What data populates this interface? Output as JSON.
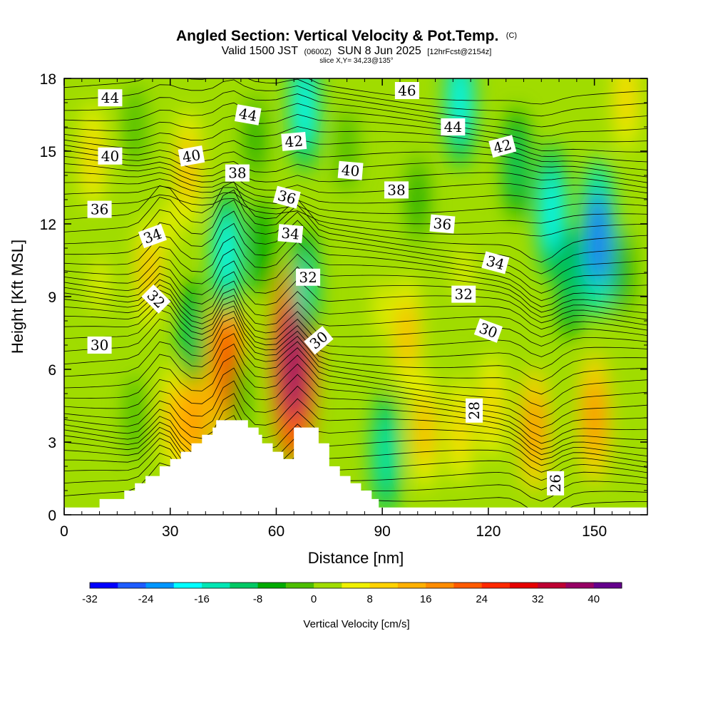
{
  "chart_data": {
    "type": "heatmap",
    "title_main": "Angled Section: Vertical Velocity & Pot.Temp.",
    "title_copyright": "(C)",
    "subtitle_a": "Valid 1500 JST",
    "subtitle_b": "(0600Z)",
    "subtitle_c": "SUN 8 Jun 2025",
    "subtitle_d": "[12hrFcst@2154z]",
    "slice_text": "slice X,Y= 34,23@135°",
    "xlabel": "Distance [nm]",
    "ylabel": "Height [Kft MSL]",
    "xlim": [
      0,
      165
    ],
    "ylim": [
      0,
      18
    ],
    "x_ticks": [
      0,
      30,
      60,
      90,
      120,
      150
    ],
    "y_ticks": [
      0,
      3,
      6,
      9,
      12,
      15,
      18
    ],
    "colorbar": {
      "title": "Vertical Velocity [cm/s]",
      "levels": [
        -32,
        -28,
        -24,
        -20,
        -16,
        -12,
        -8,
        -4,
        0,
        4,
        8,
        12,
        16,
        20,
        24,
        28,
        32,
        36,
        40,
        44
      ],
      "tick_labels": [
        "-32",
        "-24",
        "-16",
        "-8",
        "0",
        "8",
        "16",
        "24",
        "32",
        "40"
      ],
      "colors": [
        "#0000ff",
        "#1e5cff",
        "#0096ff",
        "#00ffff",
        "#00e6b4",
        "#00c864",
        "#00aa00",
        "#4cbe00",
        "#a0dc00",
        "#f0f000",
        "#ffd200",
        "#ffb000",
        "#ff8c00",
        "#ff5a00",
        "#ff2800",
        "#e60000",
        "#be0032",
        "#960064",
        "#64008c"
      ]
    },
    "terrain": [
      [
        0,
        0.3
      ],
      [
        10,
        0.3
      ],
      [
        10,
        0.65
      ],
      [
        17,
        0.65
      ],
      [
        17,
        1.0
      ],
      [
        20,
        1.0
      ],
      [
        20,
        1.3
      ],
      [
        23,
        1.3
      ],
      [
        23,
        1.6
      ],
      [
        27,
        1.6
      ],
      [
        27,
        2.0
      ],
      [
        30,
        2.0
      ],
      [
        30,
        2.3
      ],
      [
        33,
        2.3
      ],
      [
        33,
        2.6
      ],
      [
        36,
        2.6
      ],
      [
        36,
        2.95
      ],
      [
        39,
        2.95
      ],
      [
        39,
        3.3
      ],
      [
        42,
        3.3
      ],
      [
        42,
        3.6
      ],
      [
        43,
        3.6
      ],
      [
        43,
        3.9
      ],
      [
        52,
        3.9
      ],
      [
        52,
        3.6
      ],
      [
        55,
        3.6
      ],
      [
        55,
        3.3
      ],
      [
        56,
        3.3
      ],
      [
        56,
        2.95
      ],
      [
        59,
        2.95
      ],
      [
        59,
        2.6
      ],
      [
        62,
        2.6
      ],
      [
        62,
        2.3
      ],
      [
        65,
        2.3
      ],
      [
        65,
        3.6
      ],
      [
        72,
        3.6
      ],
      [
        72,
        2.95
      ],
      [
        75,
        2.95
      ],
      [
        75,
        2.0
      ],
      [
        78,
        2.0
      ],
      [
        78,
        1.6
      ],
      [
        81,
        1.6
      ],
      [
        81,
        1.3
      ],
      [
        84,
        1.3
      ],
      [
        84,
        1.0
      ],
      [
        87,
        1.0
      ],
      [
        87,
        0.65
      ],
      [
        89,
        0.65
      ],
      [
        89,
        0.3
      ],
      [
        165,
        0.3
      ]
    ],
    "velocity_cells": [
      {
        "x": 8,
        "y": 14.8,
        "value": 10
      },
      {
        "x": 10,
        "y": 9.5,
        "value": 6
      },
      {
        "x": 24,
        "y": 10.0,
        "value": 12
      },
      {
        "x": 35,
        "y": 14.3,
        "value": 14
      },
      {
        "x": 30,
        "y": 12.0,
        "value": 6
      },
      {
        "x": 31,
        "y": 4.0,
        "value": 12
      },
      {
        "x": 37,
        "y": 3.8,
        "value": 18
      },
      {
        "x": 46,
        "y": 6.2,
        "value": 26
      },
      {
        "x": 65,
        "y": 6.3,
        "value": 38
      },
      {
        "x": 90,
        "y": 8.5,
        "value": 6
      },
      {
        "x": 97,
        "y": 7.4,
        "value": 14
      },
      {
        "x": 102,
        "y": 3.5,
        "value": 14
      },
      {
        "x": 112,
        "y": 3.5,
        "value": 10
      },
      {
        "x": 121,
        "y": 4.5,
        "value": 10
      },
      {
        "x": 133,
        "y": 3.5,
        "value": 16
      },
      {
        "x": 150,
        "y": 4.0,
        "value": 18
      },
      {
        "x": 159,
        "y": 17.2,
        "value": 10
      },
      {
        "x": 113,
        "y": 10.0,
        "value": 4
      },
      {
        "x": 46,
        "y": 10.8,
        "value": -18
      },
      {
        "x": 49,
        "y": 5.0,
        "value": -6
      },
      {
        "x": 36,
        "y": 7.5,
        "value": -12
      },
      {
        "x": 68,
        "y": 9.5,
        "value": -14
      },
      {
        "x": 68,
        "y": 16.8,
        "value": -18
      },
      {
        "x": 91,
        "y": 2.5,
        "value": -16
      },
      {
        "x": 112,
        "y": 17.0,
        "value": -18
      },
      {
        "x": 138,
        "y": 12.5,
        "value": -20
      },
      {
        "x": 151,
        "y": 11.4,
        "value": -26
      },
      {
        "x": 143,
        "y": 9.5,
        "value": -12
      },
      {
        "x": 158,
        "y": 10.0,
        "value": -6
      },
      {
        "x": 128,
        "y": 14.5,
        "value": -12
      },
      {
        "x": 54,
        "y": 15.5,
        "value": -6
      },
      {
        "x": 56,
        "y": 11.0,
        "value": -8
      },
      {
        "x": 80,
        "y": 15.0,
        "value": -4
      },
      {
        "x": 20,
        "y": 16.0,
        "value": -4
      },
      {
        "x": 20,
        "y": 4.0,
        "value": -4
      },
      {
        "x": 100,
        "y": 13.0,
        "value": -6
      }
    ],
    "isentropes": [
      {
        "label": "26",
        "x": 139,
        "y": 1.3,
        "angle": -90
      },
      {
        "label": "28",
        "x": 116,
        "y": 4.3,
        "angle": -90
      },
      {
        "label": "30",
        "x": 10,
        "y": 7.0,
        "angle": 0
      },
      {
        "label": "30",
        "x": 72,
        "y": 7.2,
        "angle": -40
      },
      {
        "label": "30",
        "x": 120,
        "y": 7.6,
        "angle": 20
      },
      {
        "label": "32",
        "x": 26,
        "y": 8.9,
        "angle": 45
      },
      {
        "label": "32",
        "x": 69,
        "y": 9.8,
        "angle": 0
      },
      {
        "label": "32",
        "x": 113,
        "y": 9.1,
        "angle": 0
      },
      {
        "label": "34",
        "x": 25,
        "y": 11.5,
        "angle": -20
      },
      {
        "label": "34",
        "x": 64,
        "y": 11.6,
        "angle": 5
      },
      {
        "label": "34",
        "x": 122,
        "y": 10.4,
        "angle": 15
      },
      {
        "label": "36",
        "x": 10,
        "y": 12.6,
        "angle": 0
      },
      {
        "label": "36",
        "x": 63,
        "y": 13.1,
        "angle": 15
      },
      {
        "label": "36",
        "x": 107,
        "y": 12.0,
        "angle": 5
      },
      {
        "label": "38",
        "x": 49,
        "y": 14.1,
        "angle": 0
      },
      {
        "label": "38",
        "x": 94,
        "y": 13.4,
        "angle": 0
      },
      {
        "label": "40",
        "x": 13,
        "y": 14.8,
        "angle": 0
      },
      {
        "label": "40",
        "x": 36,
        "y": 14.8,
        "angle": -10
      },
      {
        "label": "40",
        "x": 81,
        "y": 14.2,
        "angle": 5
      },
      {
        "label": "42",
        "x": 65,
        "y": 15.4,
        "angle": -5
      },
      {
        "label": "42",
        "x": 124,
        "y": 15.2,
        "angle": -15
      },
      {
        "label": "44",
        "x": 13,
        "y": 17.2,
        "angle": 0
      },
      {
        "label": "44",
        "x": 52,
        "y": 16.5,
        "angle": 10
      },
      {
        "label": "44",
        "x": 110,
        "y": 16.0,
        "angle": 0
      },
      {
        "label": "46",
        "x": 97,
        "y": 17.5,
        "angle": 0
      }
    ]
  }
}
